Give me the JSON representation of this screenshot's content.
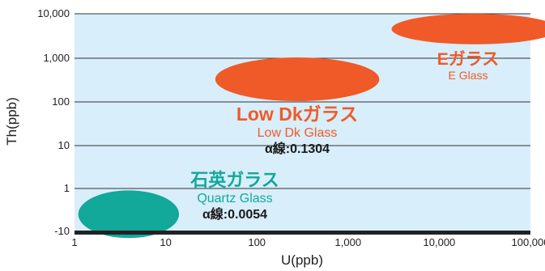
{
  "chart_data": {
    "type": "scatter",
    "xlabel": "U(ppb)",
    "ylabel": "Th(ppb)",
    "x_scale": "log",
    "y_scale": "log",
    "xlim": [
      1,
      100000
    ],
    "x_ticks": [
      "1",
      "10",
      "100",
      "1,000",
      "10,000",
      "100,000"
    ],
    "y_ticks": [
      "-10",
      "1",
      "10",
      "100",
      "1,000",
      "10,000"
    ],
    "grid": "horizontal",
    "colors": {
      "plot_bg": "#d8eefa",
      "e_glass": "#f05a28",
      "low_dk": "#f05a28",
      "quartz": "#12a89a",
      "axis": "#222222"
    },
    "regions": [
      {
        "label": "Eガラス",
        "sublabel": "E Glass",
        "alpha": "",
        "color": "#f05a28",
        "x_range": [
          3000,
          200000
        ],
        "y_range": [
          2000,
          10000
        ]
      },
      {
        "label": "Low Dkガラス",
        "sublabel": "Low Dk Glass",
        "alpha": "α線:0.1304",
        "color": "#f05a28",
        "x_range": [
          35,
          2200
        ],
        "y_range": [
          100,
          1000
        ]
      },
      {
        "label": "石英ガラス",
        "sublabel": "Quartz Glass",
        "alpha": "α線:0.0054",
        "color": "#12a89a",
        "x_range": [
          1.1,
          14
        ],
        "y_range": [
          0.07,
          0.9
        ]
      }
    ]
  }
}
